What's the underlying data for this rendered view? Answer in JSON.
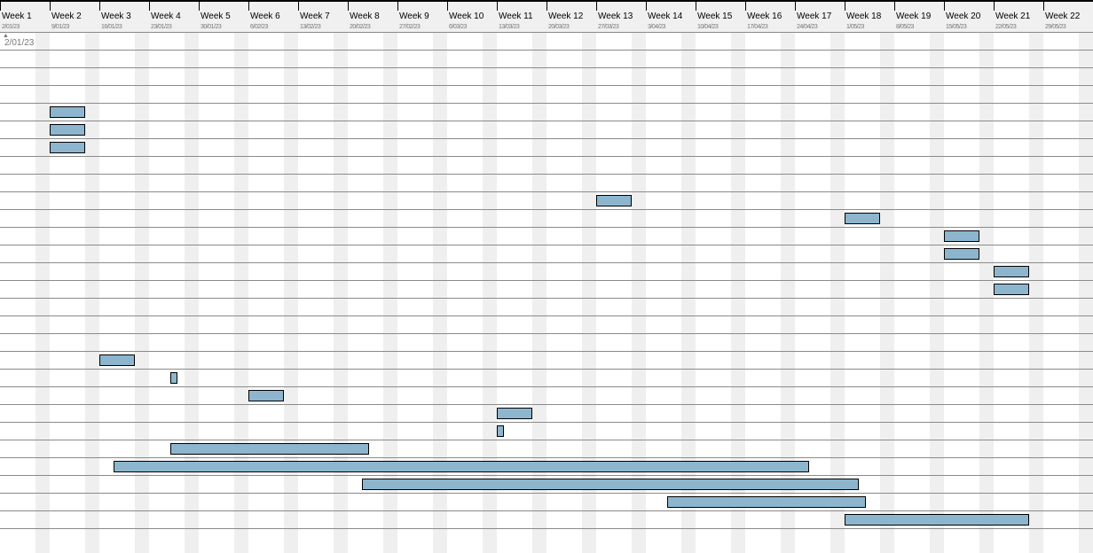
{
  "chart_data": {
    "type": "gantt",
    "timeline_start": "2023-01-02",
    "time_unit": "week",
    "weeks": [
      {
        "label": "Week 1",
        "date": "2/01/23"
      },
      {
        "label": "Week 2",
        "date": "9/01/23"
      },
      {
        "label": "Week 3",
        "date": "16/01/23"
      },
      {
        "label": "Week 4",
        "date": "23/01/23"
      },
      {
        "label": "Week 5",
        "date": "30/01/23"
      },
      {
        "label": "Week 6",
        "date": "6/02/23"
      },
      {
        "label": "Week 7",
        "date": "13/02/23"
      },
      {
        "label": "Week 8",
        "date": "20/02/23"
      },
      {
        "label": "Week 9",
        "date": "27/02/23"
      },
      {
        "label": "Week 10",
        "date": "6/03/23"
      },
      {
        "label": "Week 11",
        "date": "13/03/23"
      },
      {
        "label": "Week 12",
        "date": "20/03/23"
      },
      {
        "label": "Week 13",
        "date": "27/03/23"
      },
      {
        "label": "Week 14",
        "date": "3/04/23"
      },
      {
        "label": "Week 15",
        "date": "10/04/23"
      },
      {
        "label": "Week 16",
        "date": "17/04/23"
      },
      {
        "label": "Week 17",
        "date": "24/04/23"
      },
      {
        "label": "Week 18",
        "date": "1/05/23"
      },
      {
        "label": "Week 19",
        "date": "8/05/23"
      },
      {
        "label": "Week 20",
        "date": "15/05/23"
      },
      {
        "label": "Week 21",
        "date": "22/05/23"
      },
      {
        "label": "Week 22",
        "date": "29/05/23"
      }
    ],
    "marker": {
      "label": "2/01/23",
      "icon": "triangle-up-icon"
    },
    "row_count": 28,
    "bar_color": "#8db6ce",
    "weekend_color": "#efefef",
    "tasks": [
      {
        "row": 4,
        "start": "2023-01-09",
        "days": 5
      },
      {
        "row": 5,
        "start": "2023-01-09",
        "days": 5
      },
      {
        "row": 6,
        "start": "2023-01-09",
        "days": 5
      },
      {
        "row": 9,
        "start": "2023-03-27",
        "days": 5
      },
      {
        "row": 10,
        "start": "2023-05-01",
        "days": 5
      },
      {
        "row": 11,
        "start": "2023-05-15",
        "days": 5
      },
      {
        "row": 12,
        "start": "2023-05-15",
        "days": 5
      },
      {
        "row": 13,
        "start": "2023-05-22",
        "days": 5
      },
      {
        "row": 14,
        "start": "2023-05-22",
        "days": 5
      },
      {
        "row": 18,
        "start": "2023-01-16",
        "days": 5
      },
      {
        "row": 19,
        "start": "2023-01-26",
        "days": 1
      },
      {
        "row": 20,
        "start": "2023-02-06",
        "days": 5
      },
      {
        "row": 21,
        "start": "2023-03-13",
        "days": 5
      },
      {
        "row": 22,
        "start": "2023-03-13",
        "days": 1
      },
      {
        "row": 23,
        "start": "2023-01-26",
        "days": 28
      },
      {
        "row": 24,
        "start": "2023-01-18",
        "days": 98
      },
      {
        "row": 25,
        "start": "2023-02-22",
        "days": 70
      },
      {
        "row": 26,
        "start": "2023-04-06",
        "days": 28
      },
      {
        "row": 27,
        "start": "2023-05-01",
        "days": 26
      }
    ]
  }
}
